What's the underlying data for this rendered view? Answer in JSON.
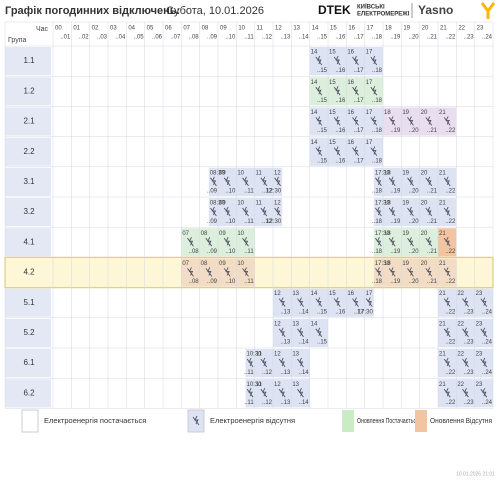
{
  "header": {
    "title": "Графік погодинних відключень:",
    "date": "Субота, 10.01.2026",
    "brand": "DTEK",
    "brand_sub": [
      "КИЇВСЬКІ",
      "ЕЛЕКТРОМЕРЕЖІ"
    ],
    "partner": "Yasno"
  },
  "table": {
    "corner_top": "Час",
    "corner_bottom": "Група",
    "highlight": "4.2",
    "columns": [
      {
        "from": "00",
        "to": "..01"
      },
      {
        "from": "01",
        "to": "..02"
      },
      {
        "from": "02",
        "to": "..03"
      },
      {
        "from": "03",
        "to": "..04"
      },
      {
        "from": "04",
        "to": "..05"
      },
      {
        "from": "05",
        "to": "..06"
      },
      {
        "from": "06",
        "to": "..07"
      },
      {
        "from": "07",
        "to": "..08"
      },
      {
        "from": "08",
        "to": "..09"
      },
      {
        "from": "09",
        "to": "..10"
      },
      {
        "from": "10",
        "to": "..11"
      },
      {
        "from": "11",
        "to": "..12"
      },
      {
        "from": "12",
        "to": "..13"
      },
      {
        "from": "13",
        "to": "..14"
      },
      {
        "from": "14",
        "to": "..15"
      },
      {
        "from": "15",
        "to": "..16"
      },
      {
        "from": "16",
        "to": "..17"
      },
      {
        "from": "17",
        "to": "..18"
      },
      {
        "from": "18",
        "to": "..19"
      },
      {
        "from": "19",
        "to": "..20"
      },
      {
        "from": "20",
        "to": "..21"
      },
      {
        "from": "21",
        "to": "..22"
      },
      {
        "from": "22",
        "to": "..23"
      },
      {
        "from": "23",
        "to": "..24"
      }
    ],
    "groups": [
      {
        "name": "1.1",
        "outages": [
          {
            "start": 14,
            "end": 18,
            "color": "#dde3f3"
          }
        ]
      },
      {
        "name": "1.2",
        "outages": [
          {
            "start": 14,
            "end": 18,
            "color": "#dcefdc"
          }
        ]
      },
      {
        "name": "2.1",
        "outages": [
          {
            "start": 14,
            "end": 18,
            "color": "#dde3f3"
          },
          {
            "start": 18,
            "end": 22,
            "color": "#e9def0"
          }
        ]
      },
      {
        "name": "2.2",
        "outages": [
          {
            "start": 14,
            "end": 18,
            "color": "#dde3f3"
          }
        ]
      },
      {
        "name": "3.1",
        "outages": [
          {
            "start": 8.5,
            "end": 12.5,
            "start_label": "08:30",
            "end_label": "12:30",
            "color": "#dde3f3"
          },
          {
            "start": 17.5,
            "end": 22,
            "start_label": "17:30",
            "color": "#dde3f3"
          }
        ]
      },
      {
        "name": "3.2",
        "outages": [
          {
            "start": 8.5,
            "end": 12.5,
            "start_label": "08:30",
            "end_label": "12:30",
            "color": "#dde3f3"
          },
          {
            "start": 17.5,
            "end": 22,
            "start_label": "17:30",
            "color": "#dde3f3"
          }
        ]
      },
      {
        "name": "4.1",
        "outages": [
          {
            "start": 7,
            "end": 11,
            "color": "#dcefdc"
          },
          {
            "start": 17.5,
            "end": 21,
            "start_label": "17:30",
            "color": "#dcefdc"
          },
          {
            "start": 21,
            "end": 22,
            "color": "#f3c4a0"
          }
        ]
      },
      {
        "name": "4.2",
        "outages": [
          {
            "start": 7,
            "end": 11,
            "color": "#f2dcc6"
          },
          {
            "start": 17.5,
            "end": 22,
            "start_label": "17:30",
            "color": "#f2dcc6"
          }
        ]
      },
      {
        "name": "5.1",
        "outages": [
          {
            "start": 12,
            "end": 17.5,
            "end_label": "17:30",
            "color": "#dde3f3"
          },
          {
            "start": 21,
            "end": 24,
            "color": "#dde3f3"
          }
        ]
      },
      {
        "name": "5.2",
        "outages": [
          {
            "start": 12,
            "end": 15,
            "color": "#dde3f3"
          },
          {
            "start": 21,
            "end": 24,
            "color": "#dde3f3"
          }
        ]
      },
      {
        "name": "6.1",
        "outages": [
          {
            "start": 10.5,
            "end": 14,
            "start_label": "10:30",
            "color": "#dde3f3"
          },
          {
            "start": 21,
            "end": 24,
            "color": "#dde3f3"
          }
        ]
      },
      {
        "name": "6.2",
        "outages": [
          {
            "start": 10.5,
            "end": 14,
            "start_label": "10:30",
            "color": "#dde3f3"
          },
          {
            "start": 21,
            "end": 24,
            "color": "#dde3f3"
          }
        ]
      }
    ]
  },
  "legend": [
    {
      "label": "Електроенергія постачається",
      "color": "#ffffff"
    },
    {
      "label": "Електроенергія відсутня",
      "color": "#dde3f3"
    },
    {
      "label": "Оновлення Постачається",
      "color": "#c9ecc4"
    },
    {
      "label": "Оновлення Відсутня",
      "color": "#f3c4a0"
    }
  ],
  "footer": "10.01.2026 21:01"
}
